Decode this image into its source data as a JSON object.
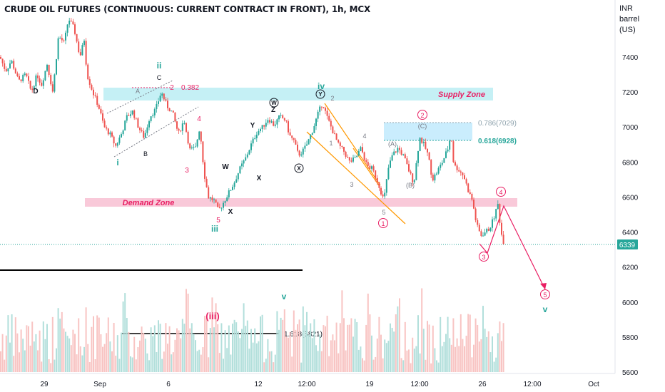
{
  "chart_data": {
    "type": "candlestick",
    "title": "CRUDE OIL FUTURES (CONTINUOUS: CURRENT CONTRACT IN FRONT), 1h, MCX",
    "currency": "INR",
    "unit": "barrel (US)",
    "ylim": [
      5560,
      7680
    ],
    "y_ticks": [
      7400,
      7200,
      7000,
      6800,
      6600,
      6400,
      6200,
      6000,
      5800,
      5600
    ],
    "x_ticks": [
      "29",
      "Sep",
      "6",
      "12",
      "12:00",
      "19",
      "12:00",
      "26",
      "12:00",
      "Oct"
    ],
    "last_price": "6339",
    "price_path": [
      [
        0,
        7400
      ],
      [
        8,
        7320
      ],
      [
        16,
        7380
      ],
      [
        26,
        7260
      ],
      [
        36,
        7300
      ],
      [
        44,
        7200
      ],
      [
        52,
        7300
      ],
      [
        58,
        7240
      ],
      [
        66,
        7360
      ],
      [
        74,
        7200
      ],
      [
        82,
        7520
      ],
      [
        90,
        7480
      ],
      [
        96,
        7620
      ],
      [
        104,
        7560
      ],
      [
        112,
        7400
      ],
      [
        118,
        7500
      ],
      [
        122,
        7300
      ],
      [
        130,
        7200
      ],
      [
        138,
        7120
      ],
      [
        146,
        7000
      ],
      [
        154,
        6960
      ],
      [
        162,
        6890
      ],
      [
        170,
        6960
      ],
      [
        178,
        7060
      ],
      [
        186,
        7090
      ],
      [
        194,
        7000
      ],
      [
        202,
        6940
      ],
      [
        210,
        7060
      ],
      [
        218,
        7100
      ],
      [
        226,
        7200
      ],
      [
        234,
        7120
      ],
      [
        242,
        7080
      ],
      [
        250,
        6960
      ],
      [
        258,
        7040
      ],
      [
        266,
        6870
      ],
      [
        274,
        6880
      ],
      [
        280,
        7000
      ],
      [
        286,
        6740
      ],
      [
        292,
        6600
      ],
      [
        300,
        6580
      ],
      [
        306,
        6520
      ],
      [
        312,
        6560
      ],
      [
        320,
        6620
      ],
      [
        328,
        6680
      ],
      [
        336,
        6760
      ],
      [
        344,
        6820
      ],
      [
        352,
        6900
      ],
      [
        360,
        6970
      ],
      [
        368,
        7000
      ],
      [
        376,
        7050
      ],
      [
        384,
        7010
      ],
      [
        392,
        7060
      ],
      [
        400,
        7040
      ],
      [
        406,
        6950
      ],
      [
        412,
        6920
      ],
      [
        418,
        6840
      ],
      [
        424,
        6860
      ],
      [
        430,
        6900
      ],
      [
        438,
        6980
      ],
      [
        446,
        7080
      ],
      [
        452,
        7140
      ],
      [
        458,
        7060
      ],
      [
        466,
        6980
      ],
      [
        474,
        6900
      ],
      [
        482,
        6860
      ],
      [
        490,
        6800
      ],
      [
        498,
        6820
      ],
      [
        506,
        6880
      ],
      [
        514,
        6780
      ],
      [
        522,
        6760
      ],
      [
        530,
        6680
      ],
      [
        538,
        6580
      ],
      [
        544,
        6760
      ],
      [
        550,
        6840
      ],
      [
        558,
        6880
      ],
      [
        566,
        6830
      ],
      [
        574,
        6740
      ],
      [
        580,
        6680
      ],
      [
        588,
        6940
      ],
      [
        594,
        6900
      ],
      [
        600,
        6840
      ],
      [
        606,
        6700
      ],
      [
        612,
        6740
      ],
      [
        620,
        6800
      ],
      [
        628,
        6880
      ],
      [
        632,
        6960
      ],
      [
        636,
        6780
      ],
      [
        642,
        6760
      ],
      [
        650,
        6720
      ],
      [
        656,
        6640
      ],
      [
        662,
        6580
      ],
      [
        668,
        6440
      ],
      [
        674,
        6380
      ],
      [
        680,
        6400
      ],
      [
        686,
        6420
      ],
      [
        692,
        6480
      ],
      [
        698,
        6560
      ],
      [
        702,
        6400
      ],
      [
        706,
        6339
      ]
    ]
  },
  "right_axis": {
    "currency": "INR",
    "unit": "barrel (US)",
    "last_price": "6339"
  },
  "zones": [
    {
      "name": "supply",
      "label": "Supply Zone"
    },
    {
      "name": "demand",
      "label": "Demand Zone"
    },
    {
      "name": "fib-box",
      "label_786": "0.786(7029)",
      "label_618": "0.618(6928)"
    }
  ],
  "annotations": {
    "fib_0382": "0.382",
    "fib_1618": "1.618(5821)",
    "wave_iii_paren": "(iii)",
    "wave_labels_green": [
      "ii",
      "i",
      "iii",
      "iv",
      "v",
      "v"
    ],
    "wave_labels_black": [
      "D",
      "W",
      "X",
      "Y",
      "Z",
      "X",
      "W",
      "Y",
      "X"
    ],
    "wave_labels_gray": [
      "A",
      "B",
      "C",
      "1",
      "2",
      "3",
      "4",
      "5",
      "(A)",
      "(B)",
      "(C)"
    ],
    "wave_labels_red_small": [
      "2",
      "4",
      "3",
      "5"
    ],
    "wave_labels_red_circled": [
      "1",
      "2",
      "3",
      "4",
      "5"
    ]
  },
  "colors": {
    "bull": "#26a69a",
    "bear": "#ef5350",
    "supply_zone": "#b2ebf2",
    "demand_zone": "#f8bbd0",
    "wave_green": "#26a69a",
    "wave_red": "#e91e63",
    "channel": "#ff9800",
    "last_price_label": "#26a69a"
  }
}
